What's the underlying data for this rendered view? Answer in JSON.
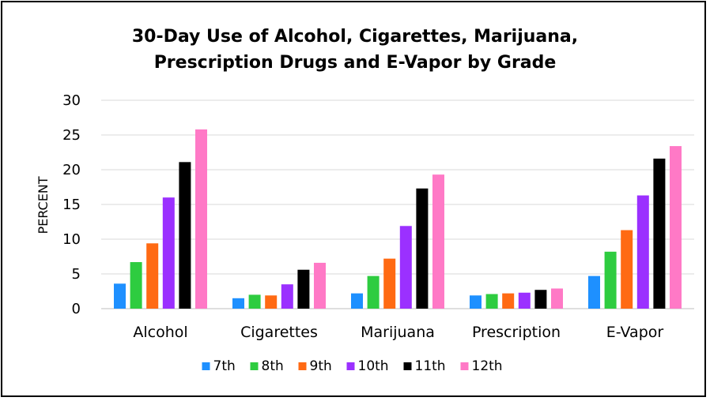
{
  "chart_data": {
    "type": "bar",
    "title_line1": "30-Day Use of Alcohol, Cigarettes, Marijuana,",
    "title_line2": "Prescription Drugs and E-Vapor by Grade",
    "xlabel": "",
    "ylabel": "PERCENT",
    "ylim": [
      0,
      30
    ],
    "yticks": [
      "0",
      "5",
      "10",
      "15",
      "20",
      "25",
      "30"
    ],
    "grid": true,
    "legend_position": "bottom",
    "categories": [
      "Alcohol",
      "Cigarettes",
      "Marijuana",
      "Prescription",
      "E-Vapor"
    ],
    "series": [
      {
        "name": "7th",
        "color": "#1e90ff",
        "values": [
          3.6,
          1.5,
          2.2,
          1.9,
          4.7
        ]
      },
      {
        "name": "8th",
        "color": "#2ecc40",
        "values": [
          6.7,
          2.0,
          4.7,
          2.1,
          8.2
        ]
      },
      {
        "name": "9th",
        "color": "#ff6a13",
        "values": [
          9.4,
          1.9,
          7.2,
          2.2,
          11.3
        ]
      },
      {
        "name": "10th",
        "color": "#9b30ff",
        "values": [
          16.0,
          3.5,
          11.9,
          2.3,
          16.3
        ]
      },
      {
        "name": "11th",
        "color": "#000000",
        "values": [
          21.1,
          5.6,
          17.3,
          2.7,
          21.6
        ]
      },
      {
        "name": "12th",
        "color": "#ff79c6",
        "values": [
          25.8,
          6.6,
          19.3,
          2.9,
          23.4
        ]
      }
    ]
  }
}
